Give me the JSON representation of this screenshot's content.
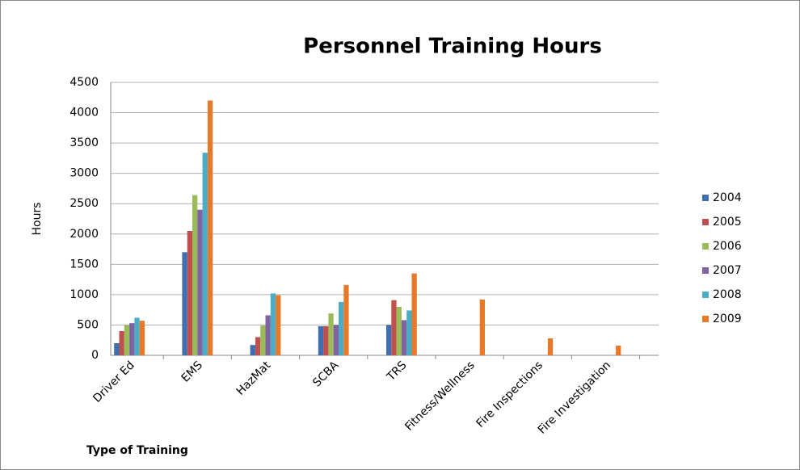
{
  "chart_data": {
    "type": "bar",
    "title": "Personnel Training Hours",
    "x_label": "Type of Training",
    "y_label": "Hours",
    "categories": [
      "Driver Ed",
      "EMS",
      "HazMat",
      "SCBA",
      "TRS",
      "Fitness/Wellness",
      "Fire Inspections",
      "Fire Investigation"
    ],
    "series": [
      {
        "name": "2004",
        "color": "#3f6fb0",
        "values": [
          200,
          1700,
          170,
          480,
          500,
          0,
          0,
          0
        ]
      },
      {
        "name": "2005",
        "color": "#c0504d",
        "values": [
          400,
          2050,
          300,
          480,
          910,
          0,
          0,
          0
        ]
      },
      {
        "name": "2006",
        "color": "#9bbb59",
        "values": [
          500,
          2640,
          490,
          690,
          800,
          0,
          0,
          0
        ]
      },
      {
        "name": "2007",
        "color": "#8064a2",
        "values": [
          530,
          2400,
          660,
          500,
          580,
          0,
          0,
          0
        ]
      },
      {
        "name": "2008",
        "color": "#4bacc6",
        "values": [
          620,
          3340,
          1020,
          880,
          740,
          0,
          0,
          0
        ]
      },
      {
        "name": "2009",
        "color": "#e8792a",
        "values": [
          570,
          4200,
          990,
          1160,
          1350,
          920,
          280,
          160
        ]
      }
    ],
    "ylim": [
      0,
      4500
    ],
    "yticks": [
      0,
      500,
      1000,
      1500,
      2000,
      2500,
      3000,
      3500,
      4000,
      4500
    ],
    "grid": true,
    "legend": "right"
  }
}
